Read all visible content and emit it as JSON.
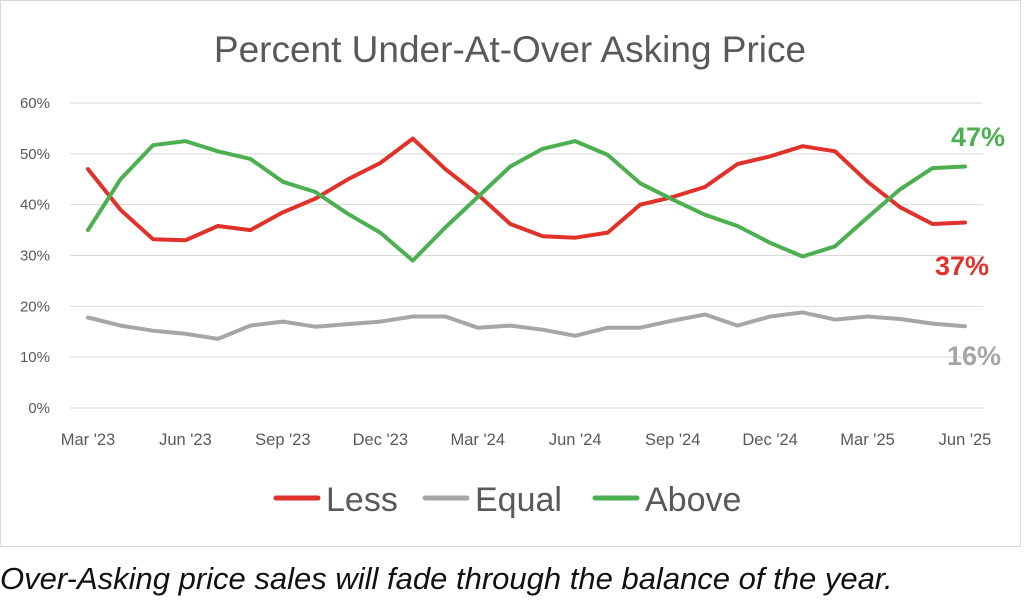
{
  "chart_data": {
    "type": "line",
    "title": "Percent Under-At-Over Asking Price",
    "xlabel": "",
    "ylabel": "",
    "ylim": [
      0,
      60
    ],
    "y_ticks": [
      "0%",
      "10%",
      "20%",
      "30%",
      "40%",
      "50%",
      "60%"
    ],
    "x": [
      "Mar '23",
      "Apr '23",
      "May '23",
      "Jun '23",
      "Jul '23",
      "Aug '23",
      "Sep '23",
      "Oct '23",
      "Nov '23",
      "Dec '23",
      "Jan '24",
      "Feb '24",
      "Mar '24",
      "Apr '24",
      "May '24",
      "Jun '24",
      "Jul '24",
      "Aug '24",
      "Sep '24",
      "Oct '24",
      "Nov '24",
      "Dec '24",
      "Jan '25",
      "Feb '25",
      "Mar '25",
      "Apr '25",
      "May '25",
      "Jun '25"
    ],
    "x_tick_labels": [
      "Mar '23",
      "Jun '23",
      "Sep '23",
      "Dec '23",
      "Mar '24",
      "Jun '24",
      "Sep '24",
      "Dec '24",
      "Mar '25",
      "Jun '25"
    ],
    "grid": true,
    "legend_position": "bottom",
    "series": [
      {
        "name": "Less",
        "color": "#e0312b",
        "values": [
          47,
          39,
          33.2,
          33,
          35.8,
          35,
          38.5,
          41.2,
          45,
          48.2,
          53,
          47,
          42,
          36.2,
          33.8,
          33.5,
          34.5,
          40,
          41.5,
          43.5,
          48,
          49.5,
          51.5,
          50.5,
          44.5,
          39.5,
          36.2,
          36.5
        ],
        "end_label": "37%"
      },
      {
        "name": "Equal",
        "color": "#a6a6a6",
        "values": [
          17.8,
          16.2,
          15.2,
          14.6,
          13.6,
          16.2,
          17,
          16,
          16.5,
          17,
          18,
          18,
          15.8,
          16.2,
          15.4,
          14.2,
          15.8,
          15.8,
          17.2,
          18.4,
          16.2,
          18,
          18.8,
          17.4,
          18,
          17.5,
          16.6,
          16.1
        ],
        "end_label": "16%"
      },
      {
        "name": "Above",
        "color": "#4caf50",
        "values": [
          35,
          45,
          51.7,
          52.5,
          50.5,
          49,
          44.5,
          42.5,
          38.2,
          34.5,
          29,
          35.5,
          41.5,
          47.5,
          51,
          52.5,
          49.8,
          44.2,
          41,
          38,
          35.8,
          32.5,
          29.8,
          31.8,
          37.5,
          43,
          47.2,
          47.5
        ],
        "end_label": "47%"
      }
    ]
  },
  "caption": "Over-Asking price sales will fade through the balance of the year."
}
